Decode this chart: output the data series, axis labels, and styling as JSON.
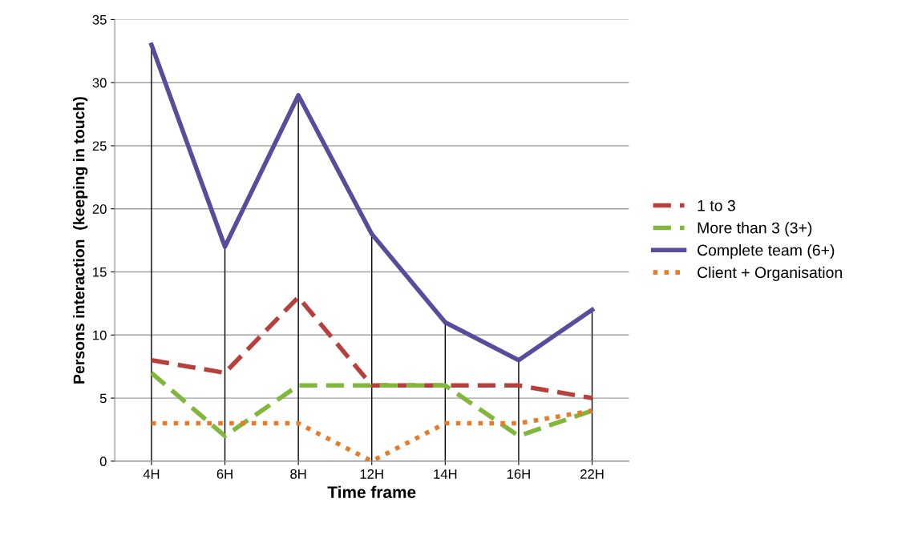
{
  "chart_data": {
    "type": "line",
    "xlabel": "Time frame",
    "ylabel": "Persons interaction  (keeping in touch)",
    "categories": [
      "4H",
      "6H",
      "8H",
      "12H",
      "14H",
      "16H",
      "22H"
    ],
    "series": [
      {
        "name": "1 to 3",
        "color": "#b8403c",
        "line_style": "dashed",
        "values": [
          8,
          7,
          13,
          6,
          6,
          6,
          5
        ]
      },
      {
        "name": "More than 3 (3+)",
        "color": "#7fb83a",
        "line_style": "dashed",
        "values": [
          7,
          2,
          6,
          6,
          6,
          2,
          4
        ]
      },
      {
        "name": "Complete team (6+)",
        "color": "#5a4c9c",
        "line_style": "solid",
        "values": [
          33,
          17,
          29,
          18,
          11,
          8,
          12
        ]
      },
      {
        "name": "Client + Organisation",
        "color": "#e87b2a",
        "line_style": "dotted",
        "values": [
          3,
          3,
          3,
          0,
          3,
          3,
          4
        ]
      }
    ],
    "ref_lines": [
      {
        "axis": "x",
        "value": "4H",
        "color": "#000000"
      },
      {
        "axis": "x",
        "value": "6H",
        "color": "#000000"
      },
      {
        "axis": "x",
        "value": "8H",
        "color": "#000000"
      },
      {
        "axis": "x",
        "value": "12H",
        "color": "#000000"
      },
      {
        "axis": "x",
        "value": "14H",
        "color": "#000000"
      },
      {
        "axis": "x",
        "value": "16H",
        "color": "#000000"
      },
      {
        "axis": "x",
        "value": "22H",
        "color": "#000000"
      }
    ],
    "ylim": [
      0,
      35
    ],
    "yticks": [
      0,
      5,
      10,
      15,
      20,
      25,
      30,
      35
    ],
    "grid": "y",
    "legend": "right",
    "marker": "none"
  }
}
